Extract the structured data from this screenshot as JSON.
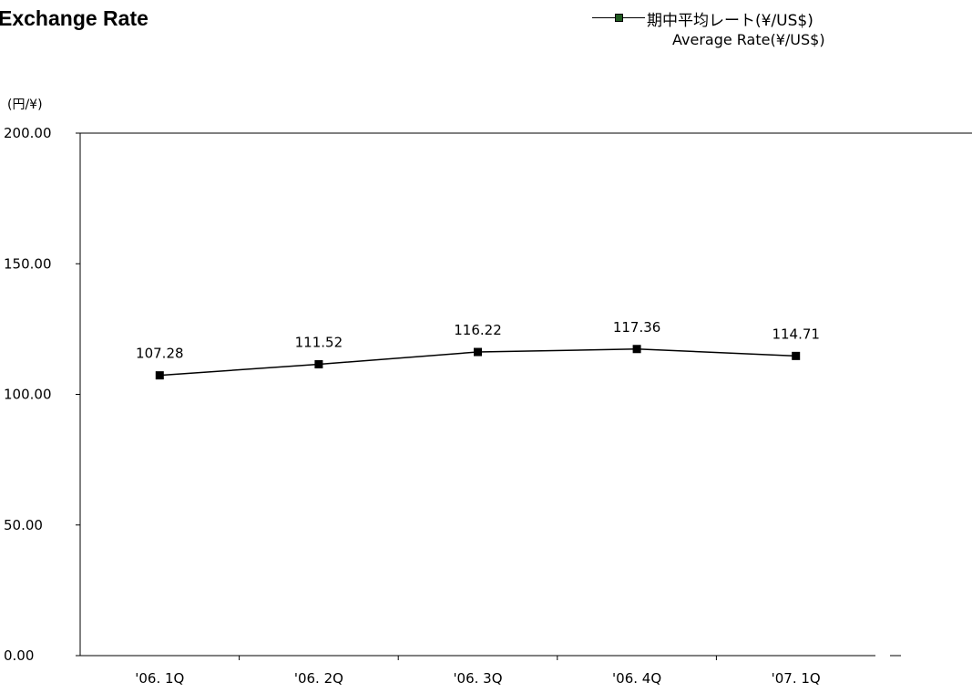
{
  "header": {
    "title": "Exchange Rate"
  },
  "legend": {
    "label_jp": "期中平均レート(¥/US$)",
    "label_en": "Average Rate(¥/US$)",
    "marker_color": "#1f5a1f"
  },
  "unit_label": "(円/¥)",
  "chart_data": {
    "type": "line",
    "categories": [
      "'06. 1Q",
      "'06. 2Q",
      "'06. 3Q",
      "'06. 4Q",
      "'07. 1Q"
    ],
    "series": [
      {
        "name": "期中平均レート(¥/US$) Average Rate(¥/US$)",
        "values": [
          107.28,
          111.52,
          116.22,
          117.36,
          114.71
        ],
        "labels": [
          "107.28",
          "111.52",
          "116.22",
          "117.36",
          "114.71"
        ],
        "marker": "square"
      }
    ],
    "title": "Exchange Rate",
    "ylabel": "(円/¥)",
    "xlabel": "",
    "ylim": [
      0,
      200
    ],
    "yticks": [
      0,
      50,
      100,
      150,
      200
    ],
    "ytick_labels": [
      "0.00",
      "50.00",
      "100.00",
      "150.00",
      "200.00"
    ],
    "grid": false,
    "legend_position": "top-right"
  }
}
